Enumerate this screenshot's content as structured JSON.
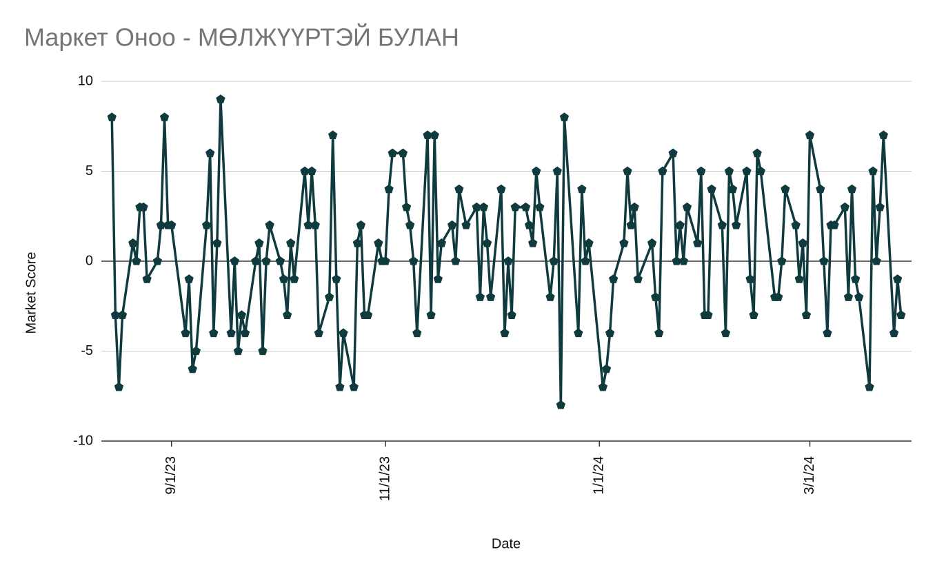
{
  "chart_data": {
    "type": "line",
    "title": "Маркет Оноо - МӨЛЖҮҮРТЭЙ БУЛАН",
    "x_label": "Date",
    "y_label": "Market Score",
    "x": [
      "8/15/23",
      "8/16/23",
      "8/17/23",
      "8/18/23",
      "8/21/23",
      "8/22/23",
      "8/23/23",
      "8/24/23",
      "8/25/23",
      "8/28/23",
      "8/29/23",
      "8/30/23",
      "8/31/23",
      "9/1/23",
      "9/5/23",
      "9/6/23",
      "9/7/23",
      "9/8/23",
      "9/11/23",
      "9/12/23",
      "9/13/23",
      "9/14/23",
      "9/15/23",
      "9/18/23",
      "9/19/23",
      "9/20/23",
      "9/21/23",
      "9/22/23",
      "9/25/23",
      "9/26/23",
      "9/27/23",
      "9/28/23",
      "9/29/23",
      "10/2/23",
      "10/3/23",
      "10/4/23",
      "10/5/23",
      "10/6/23",
      "10/9/23",
      "10/10/23",
      "10/11/23",
      "10/12/23",
      "10/13/23",
      "10/16/23",
      "10/17/23",
      "10/18/23",
      "10/19/23",
      "10/20/23",
      "10/23/23",
      "10/24/23",
      "10/25/23",
      "10/26/23",
      "10/27/23",
      "10/30/23",
      "10/31/23",
      "11/1/23",
      "11/2/23",
      "11/3/23",
      "11/6/23",
      "11/7/23",
      "11/8/23",
      "11/9/23",
      "11/10/23",
      "11/13/23",
      "11/14/23",
      "11/15/23",
      "11/16/23",
      "11/17/23",
      "11/20/23",
      "11/21/23",
      "11/22/23",
      "11/24/23",
      "11/27/23",
      "11/28/23",
      "11/29/23",
      "11/30/23",
      "12/1/23",
      "12/4/23",
      "12/5/23",
      "12/6/23",
      "12/7/23",
      "12/8/23",
      "12/11/23",
      "12/12/23",
      "12/13/23",
      "12/14/23",
      "12/15/23",
      "12/18/23",
      "12/19/23",
      "12/20/23",
      "12/21/23",
      "12/22/23",
      "12/26/23",
      "12/27/23",
      "12/28/23",
      "12/29/23",
      "1/2/24",
      "1/3/24",
      "1/4/24",
      "1/5/24",
      "1/8/24",
      "1/9/24",
      "1/10/24",
      "1/11/24",
      "1/12/24",
      "1/16/24",
      "1/17/24",
      "1/18/24",
      "1/19/24",
      "1/22/24",
      "1/23/24",
      "1/24/24",
      "1/25/24",
      "1/26/24",
      "1/29/24",
      "1/30/24",
      "1/31/24",
      "2/1/24",
      "2/2/24",
      "2/5/24",
      "2/6/24",
      "2/7/24",
      "2/8/24",
      "2/9/24",
      "2/12/24",
      "2/13/24",
      "2/14/24",
      "2/15/24",
      "2/16/24",
      "2/20/24",
      "2/21/24",
      "2/22/24",
      "2/23/24",
      "2/26/24",
      "2/27/24",
      "2/28/24",
      "2/29/24",
      "3/1/24",
      "3/4/24",
      "3/5/24",
      "3/6/24",
      "3/7/24",
      "3/8/24",
      "3/11/24",
      "3/12/24",
      "3/13/24",
      "3/14/24",
      "3/15/24",
      "3/18/24",
      "3/19/24",
      "3/20/24",
      "3/21/24",
      "3/22/24",
      "3/25/24",
      "3/26/24",
      "3/27/24"
    ],
    "series": [
      {
        "name": "Market Score",
        "color": "#0f3b3e",
        "values": [
          8,
          -3,
          -7,
          -3,
          1,
          0,
          3,
          3,
          -1,
          0,
          2,
          8,
          2,
          2,
          -4,
          -1,
          -6,
          -5,
          2,
          6,
          -4,
          1,
          9,
          -4,
          0,
          -5,
          -3,
          -4,
          0,
          1,
          -5,
          0,
          2,
          0,
          -1,
          -3,
          1,
          -1,
          5,
          2,
          5,
          2,
          -4,
          -2,
          7,
          -1,
          -7,
          -4,
          -7,
          1,
          2,
          -3,
          -3,
          1,
          0,
          0,
          4,
          6,
          6,
          3,
          2,
          0,
          -4,
          7,
          -3,
          7,
          -1,
          1,
          2,
          0,
          4,
          2,
          3,
          -2,
          3,
          1,
          -2,
          4,
          -4,
          0,
          -3,
          3,
          3,
          2,
          1,
          5,
          3,
          -2,
          0,
          5,
          -8,
          8,
          -4,
          4,
          0,
          1,
          -7,
          -6,
          -4,
          -1,
          1,
          5,
          2,
          3,
          -1,
          1,
          -2,
          -4,
          5,
          6,
          0,
          2,
          0,
          3,
          1,
          5,
          -3,
          -3,
          4,
          2,
          -4,
          5,
          4,
          2,
          5,
          -1,
          -3,
          6,
          5,
          -2,
          -2,
          0,
          4,
          2,
          -1,
          1,
          -3,
          7,
          4,
          0,
          -4,
          2,
          2,
          3,
          -2,
          4,
          -1,
          -2,
          -7,
          5,
          0,
          3,
          7,
          -4,
          -1,
          -3
        ]
      }
    ],
    "xlim": [
      "8/12/23",
      "3/30/24"
    ],
    "xticks": [
      "9/1/23",
      "11/1/23",
      "1/1/24",
      "3/1/24"
    ],
    "ylim": [
      -10,
      10
    ],
    "yticks": [
      -10,
      -5,
      0,
      5,
      10
    ],
    "grid": true
  }
}
